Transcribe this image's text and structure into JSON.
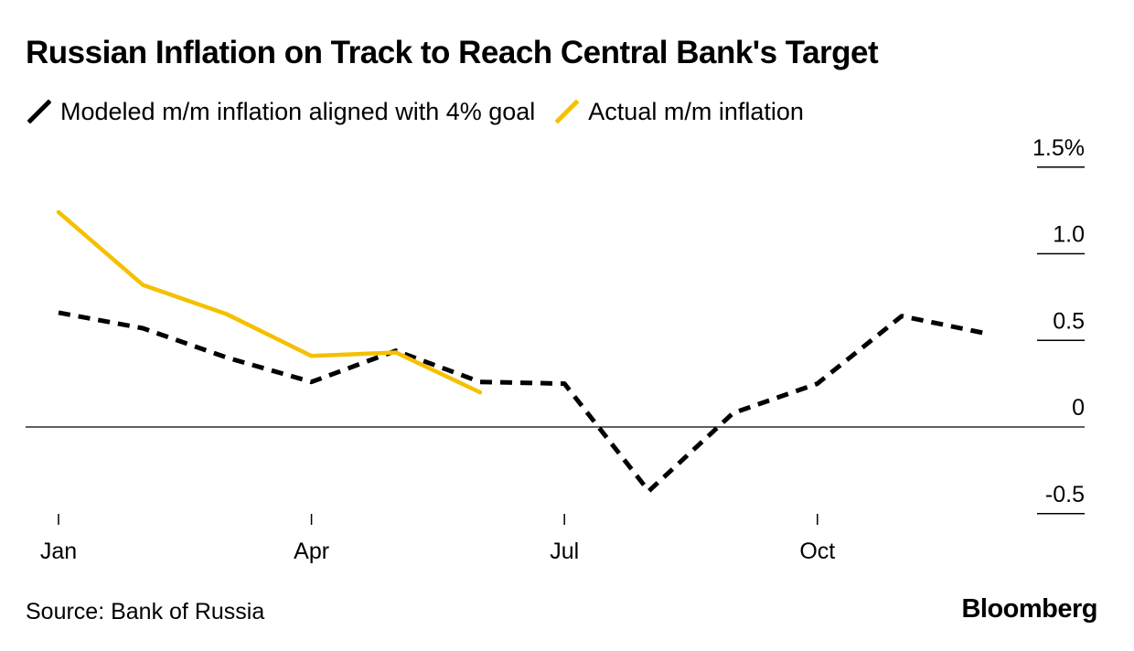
{
  "title": "Russian Inflation on Track to Reach Central Bank's Target",
  "legend": [
    {
      "label": "Modeled m/m inflation aligned with 4% goal",
      "color": "#000000"
    },
    {
      "label": "Actual m/m inflation",
      "color": "#f5c000"
    }
  ],
  "source": "Source: Bank of Russia",
  "brand": "Bloomberg",
  "chart_data": {
    "type": "line",
    "title": "Russian Inflation on Track to Reach Central Bank's Target",
    "x": [
      "Jan",
      "Feb",
      "Mar",
      "Apr",
      "May",
      "Jun",
      "Jul",
      "Aug",
      "Sep",
      "Oct",
      "Nov",
      "Dec"
    ],
    "x_tick_labels": [
      "Jan",
      "Apr",
      "Jul",
      "Oct"
    ],
    "y_ticks": [
      {
        "value": 1.5,
        "label": "1.5%"
      },
      {
        "value": 1.0,
        "label": "1.0"
      },
      {
        "value": 0.5,
        "label": "0.5"
      },
      {
        "value": 0,
        "label": "0"
      },
      {
        "value": -0.5,
        "label": "-0.5"
      }
    ],
    "ylim": [
      -0.55,
      1.55
    ],
    "series": [
      {
        "name": "Modeled m/m inflation aligned with 4% goal",
        "color": "#000000",
        "style": "dashed",
        "values": [
          0.66,
          0.57,
          0.4,
          0.26,
          0.44,
          0.26,
          0.25,
          -0.37,
          0.08,
          0.25,
          0.64,
          0.54
        ]
      },
      {
        "name": "Actual m/m inflation",
        "color": "#f5c000",
        "style": "solid",
        "values": [
          1.24,
          0.82,
          0.65,
          0.41,
          0.43,
          0.2,
          null,
          null,
          null,
          null,
          null,
          null
        ]
      }
    ],
    "zero_line": true,
    "axis_position": "right"
  }
}
